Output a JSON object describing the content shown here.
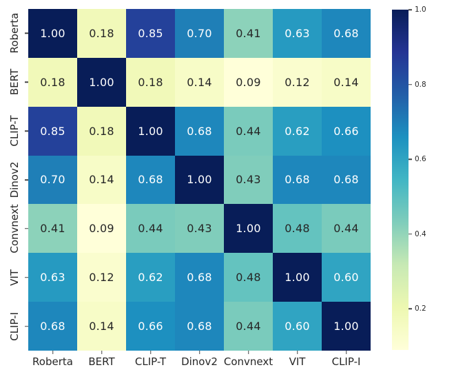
{
  "figure": {
    "background": "#ffffff"
  },
  "chart_data": {
    "type": "heatmap",
    "title": "",
    "xlabel": "",
    "ylabel": "",
    "categories": [
      "Roberta",
      "BERT",
      "CLIP-T",
      "Dinov2",
      "Convnext",
      "VIT",
      "CLIP-I"
    ],
    "matrix": [
      [
        1.0,
        0.18,
        0.85,
        0.7,
        0.41,
        0.63,
        0.68
      ],
      [
        0.18,
        1.0,
        0.18,
        0.14,
        0.09,
        0.12,
        0.14
      ],
      [
        0.85,
        0.18,
        1.0,
        0.68,
        0.44,
        0.62,
        0.66
      ],
      [
        0.7,
        0.14,
        0.68,
        1.0,
        0.43,
        0.68,
        0.68
      ],
      [
        0.41,
        0.09,
        0.44,
        0.43,
        1.0,
        0.48,
        0.44
      ],
      [
        0.63,
        0.12,
        0.62,
        0.68,
        0.48,
        1.0,
        0.6
      ],
      [
        0.68,
        0.14,
        0.66,
        0.68,
        0.44,
        0.6,
        1.0
      ]
    ],
    "vmin": 0.09,
    "vmax": 1.0,
    "grid": false,
    "legend_position": "right-colorbar",
    "colormap": {
      "name": "YlGnBu",
      "stops": [
        {
          "t": 0.0,
          "color": "#ffffd9"
        },
        {
          "t": 0.125,
          "color": "#edf8b1"
        },
        {
          "t": 0.25,
          "color": "#c7e9b4"
        },
        {
          "t": 0.375,
          "color": "#7fcdbb"
        },
        {
          "t": 0.5,
          "color": "#41b6c4"
        },
        {
          "t": 0.625,
          "color": "#1d91c0"
        },
        {
          "t": 0.75,
          "color": "#225ea8"
        },
        {
          "t": 0.875,
          "color": "#253494"
        },
        {
          "t": 1.0,
          "color": "#081d58"
        }
      ]
    },
    "colorbar": {
      "ticks": [
        1.0,
        0.8,
        0.6,
        0.4,
        0.2
      ],
      "tick_labels": [
        "1.0",
        "0.8",
        "0.6",
        "0.4",
        "0.2"
      ]
    },
    "annotation_colors": {
      "light": "#ffffff",
      "dark": "#262626"
    }
  }
}
